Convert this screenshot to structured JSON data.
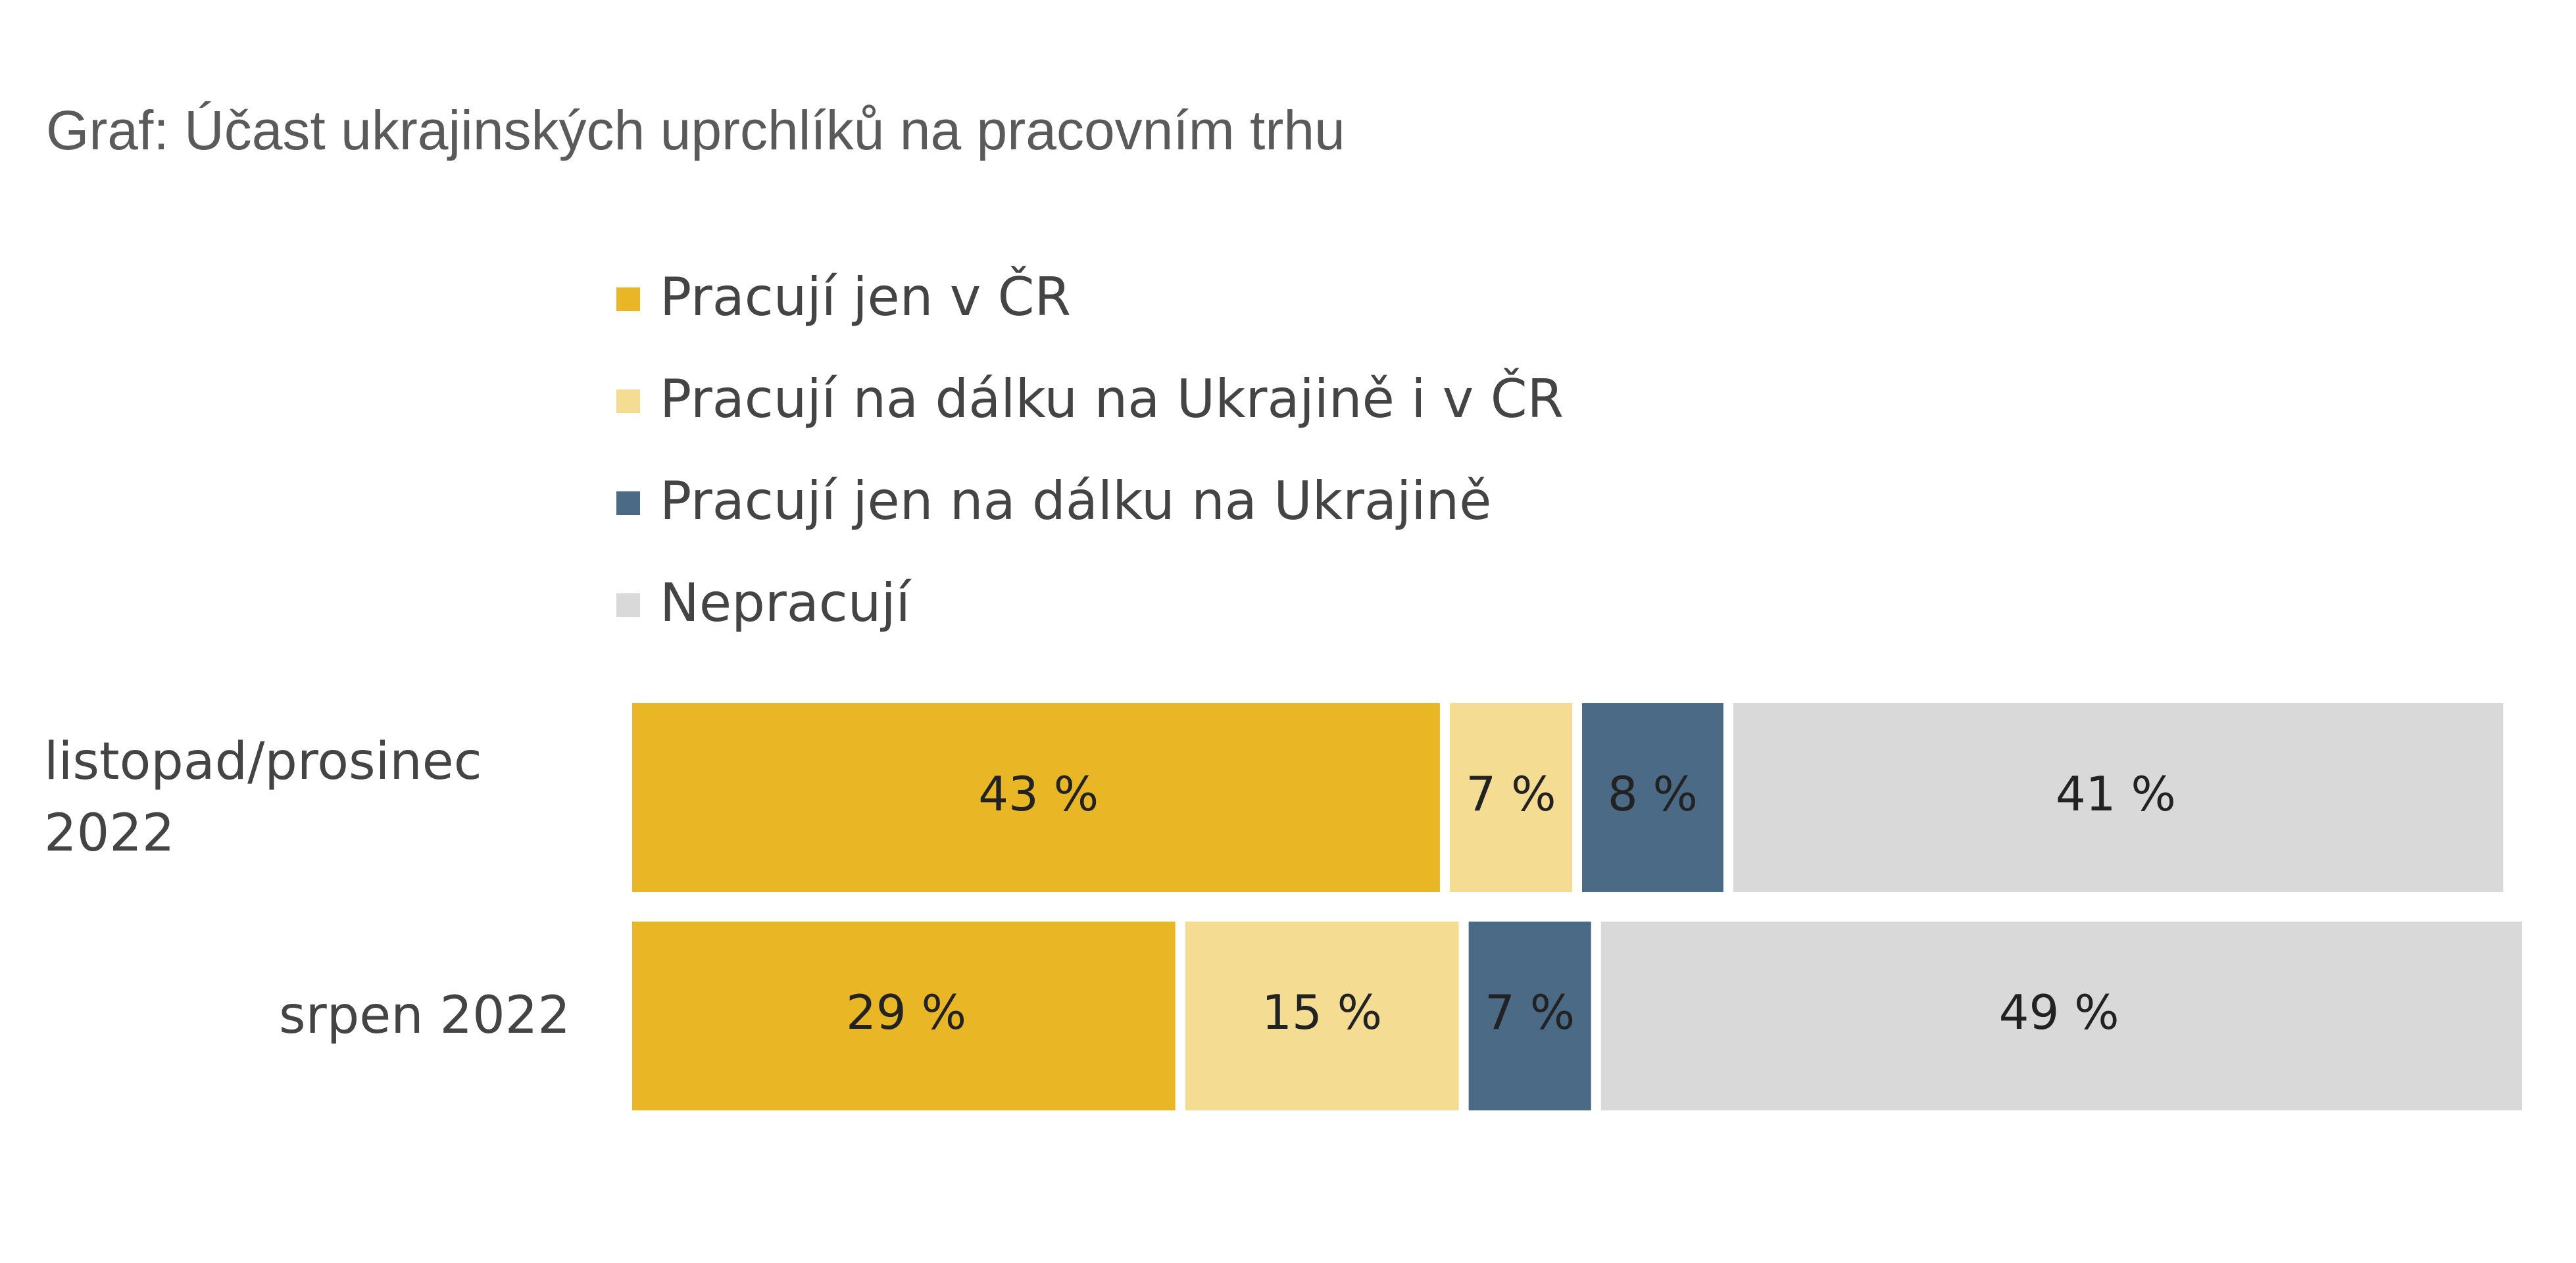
{
  "chart_data": {
    "type": "stacked-bar",
    "orientation": "horizontal",
    "title": "Graf: Účast ukrajinských uprchlíků na pracovním trhu",
    "categories": [
      "listopad/prosinec 2022",
      "srpen 2022"
    ],
    "xlim": [
      0,
      100
    ],
    "legend": "top",
    "series": [
      {
        "name": "Pracují jen v ČR",
        "color": "#e9b625",
        "values": [
          43,
          29
        ],
        "value_labels": [
          "43 %",
          "29 %"
        ]
      },
      {
        "name": "Pracují na dálku na Ukrajině i v ČR",
        "color": "#f5dc93",
        "values": [
          7,
          15
        ],
        "value_labels": [
          "7 %",
          "15 %"
        ]
      },
      {
        "name": "Pracují jen na dálku na Ukrajině",
        "color": "#4a6a86",
        "values": [
          8,
          7
        ],
        "value_labels": [
          "8 %",
          "7 %"
        ]
      },
      {
        "name": "Nepracují",
        "color": "#d9d9d9",
        "values": [
          41,
          49
        ],
        "value_labels": [
          "41 %",
          "49 %"
        ]
      }
    ]
  }
}
